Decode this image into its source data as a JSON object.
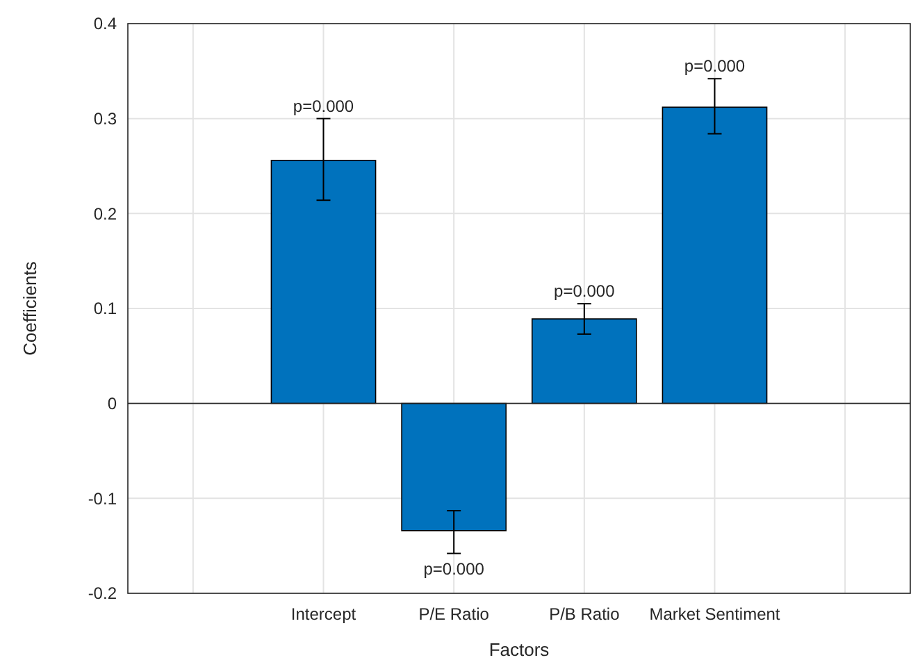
{
  "chart_data": {
    "type": "bar",
    "xlabel": "Factors",
    "ylabel": "Coefficients",
    "categories": [
      null,
      "Intercept",
      "P/E Ratio",
      "P/B Ratio",
      "Market Sentiment",
      null
    ],
    "values": [
      null,
      0.256,
      -0.134,
      0.089,
      0.312,
      null
    ],
    "errors": [
      null,
      [
        0.214,
        0.3
      ],
      [
        -0.158,
        -0.113
      ],
      [
        0.073,
        0.105
      ],
      [
        0.284,
        0.342
      ],
      null
    ],
    "annotations": [
      {
        "text": "p=0.000",
        "x": "Intercept",
        "y": 0.3
      },
      {
        "text": "p=0.000",
        "x": "P/E Ratio",
        "y": -0.158
      },
      {
        "text": "p=0.000",
        "x": "P/B Ratio",
        "y": 0.105
      },
      {
        "text": "p=0.000",
        "x": "Market Sentiment",
        "y": 0.342
      }
    ],
    "color": "#0072bd",
    "ylim": [
      -0.2,
      0.4
    ],
    "yticks": [
      -0.2,
      -0.1,
      0,
      0.1,
      0.2,
      0.3,
      0.4
    ],
    "grid": true
  }
}
